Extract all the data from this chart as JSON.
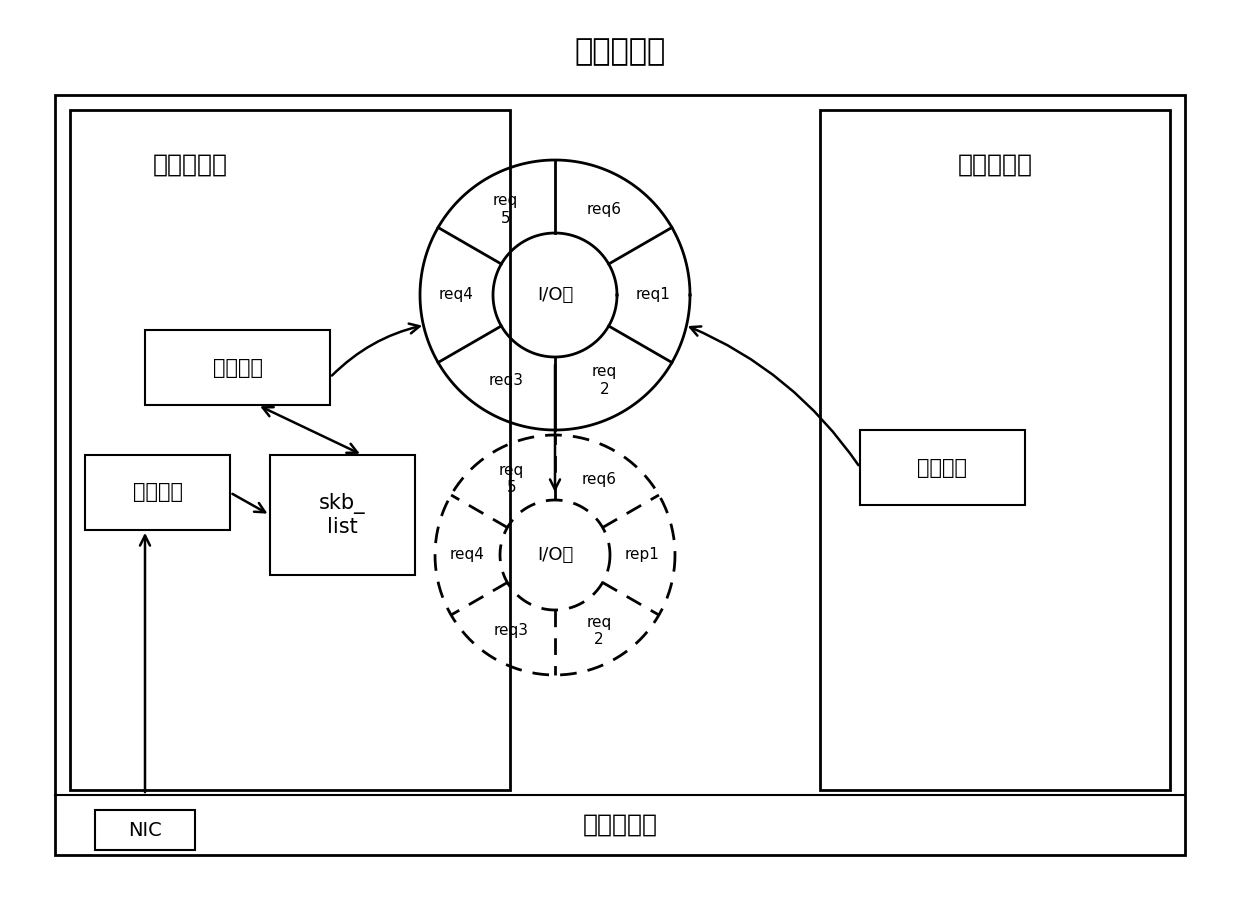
{
  "title": "虚拟化平台",
  "outer_box_label": "虚拟监控器",
  "left_box_label": "特权虚拟机",
  "right_box_label": "用户虚拟机",
  "jieshou": "接收线程",
  "skb_list": "skb_\nlist",
  "houduan": "后端驱动",
  "qianduan": "前端驱动",
  "nic": "NIC",
  "ring1_label": "I/O环",
  "ring1_segments": [
    "req6",
    "req1",
    "req\n2",
    "req3",
    "req4",
    "req\n5"
  ],
  "ring2_label": "I/O环",
  "ring2_segments": [
    "req6",
    "rep1",
    "req\n2",
    "req3",
    "req4",
    "req\n5"
  ],
  "bg_color": "#ffffff",
  "line_color": "#000000"
}
